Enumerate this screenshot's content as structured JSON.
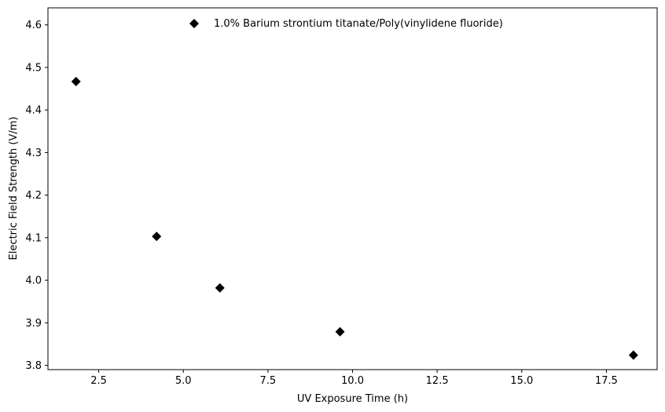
{
  "chart_data": {
    "type": "scatter",
    "xlabel": "UV Exposure Time (h)",
    "ylabel": "Electric Field Strength (V/m)",
    "xlim": [
      1.0,
      19.0
    ],
    "ylim": [
      3.79,
      4.64
    ],
    "xticks": [
      2.5,
      5.0,
      7.5,
      10.0,
      12.5,
      15.0,
      17.5
    ],
    "xtick_labels": [
      "2.5",
      "5.0",
      "7.5",
      "10.0",
      "12.5",
      "15.0",
      "17.5"
    ],
    "yticks": [
      3.8,
      3.9,
      4.0,
      4.1,
      4.2,
      4.3,
      4.4,
      4.5,
      4.6
    ],
    "ytick_labels": [
      "3.8",
      "3.9",
      "4.0",
      "4.1",
      "4.2",
      "4.3",
      "4.4",
      "4.5",
      "4.6"
    ],
    "grid": false,
    "legend_position": "top-center",
    "series": [
      {
        "name": "1.0% Barium strontium titanate/Poly(vinylidene fluoride)",
        "marker": "diamond",
        "color": "#000000",
        "x": [
          1.83,
          4.21,
          6.08,
          9.63,
          18.3
        ],
        "y": [
          4.467,
          4.103,
          3.982,
          3.879,
          3.824
        ]
      }
    ]
  }
}
